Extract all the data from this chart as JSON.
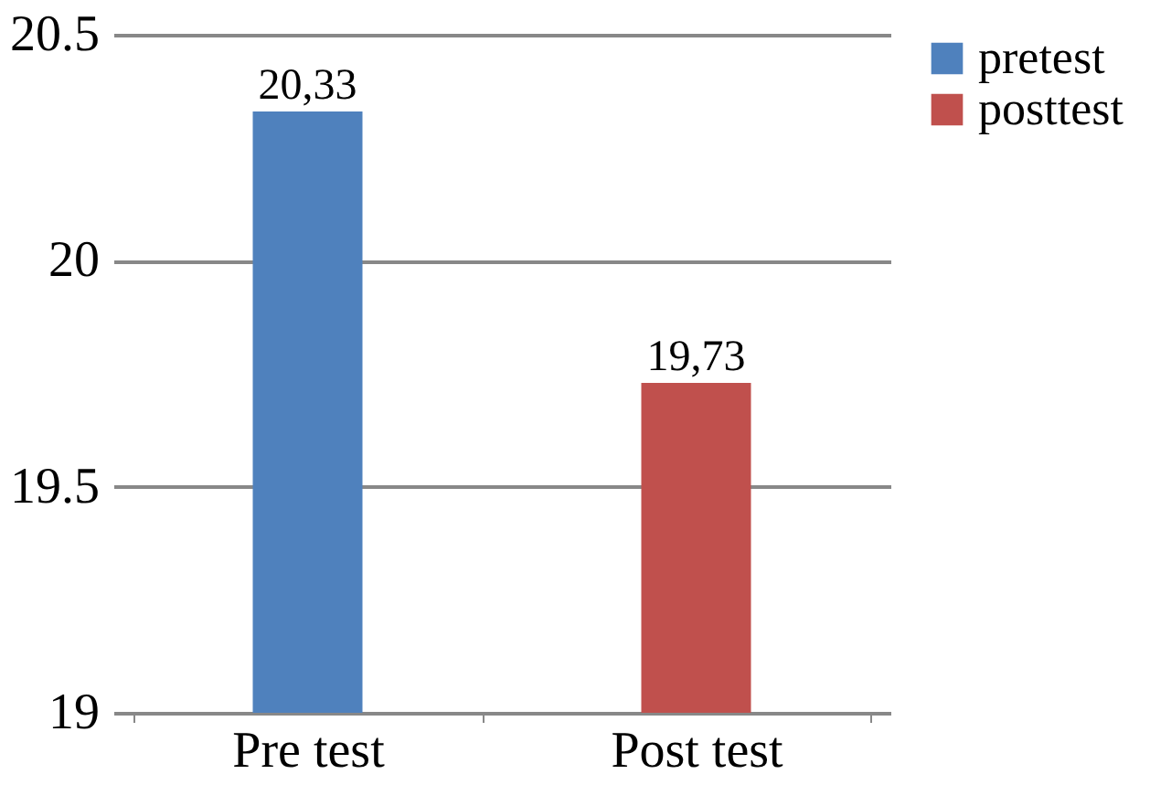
{
  "chart_data": {
    "type": "bar",
    "categories": [
      "Pre test",
      "Post test"
    ],
    "series": [
      {
        "name": "pretest",
        "color": "#4f81bd",
        "values": [
          20.33,
          null
        ],
        "value_labels": [
          "20,33",
          null
        ]
      },
      {
        "name": "posttest",
        "color": "#c0504d",
        "values": [
          null,
          19.73
        ],
        "value_labels": [
          null,
          "19,73"
        ]
      }
    ],
    "ylim": [
      19,
      20.5
    ],
    "yticks": [
      19,
      19.5,
      20,
      20.5
    ],
    "grid": "y",
    "legend": "right"
  }
}
